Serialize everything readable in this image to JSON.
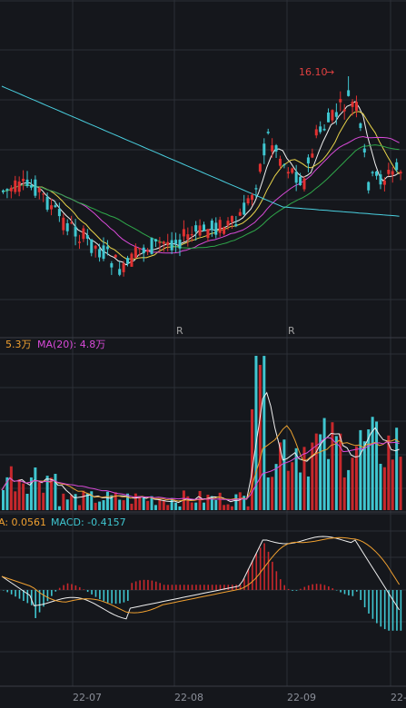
{
  "chart_data": [
    {
      "type": "candlestick",
      "panel": "price",
      "high_annotation": {
        "label": "16.10",
        "arrow": "→",
        "color": "#e04040"
      },
      "markers": [
        "R",
        "R"
      ],
      "moving_average_colors": [
        "#f0f0f0",
        "#e8d44a",
        "#d84ad8",
        "#2fa84a",
        "#4ad0e0"
      ],
      "colors": {
        "up": "#e03131",
        "down": "#3fc6d0"
      }
    },
    {
      "type": "bar",
      "panel": "volume",
      "legend": [
        {
          "text": "5.3万",
          "color": "#f0a030"
        },
        {
          "text": "MA(20): 4.8万",
          "color": "#d84ad8"
        }
      ],
      "colors": {
        "up": "#c8282c",
        "down": "#3fc6d0",
        "ma5": "#f0f0f0",
        "ma10": "#e8a030",
        "ma20": "#d84ad8"
      }
    },
    {
      "type": "bar",
      "panel": "macd",
      "legend": [
        {
          "text": "A: 0.0561",
          "color": "#f0a030"
        },
        {
          "text": "MACD: -0.4157",
          "color": "#3fc6d0"
        }
      ],
      "colors": {
        "dif": "#f0f0f0",
        "dea": "#f0a030",
        "pos": "#c8282c",
        "neg": "#3fc6d0"
      }
    }
  ],
  "x_axis": {
    "dates": [
      "22-07",
      "22-08",
      "22-09",
      "22-"
    ]
  }
}
